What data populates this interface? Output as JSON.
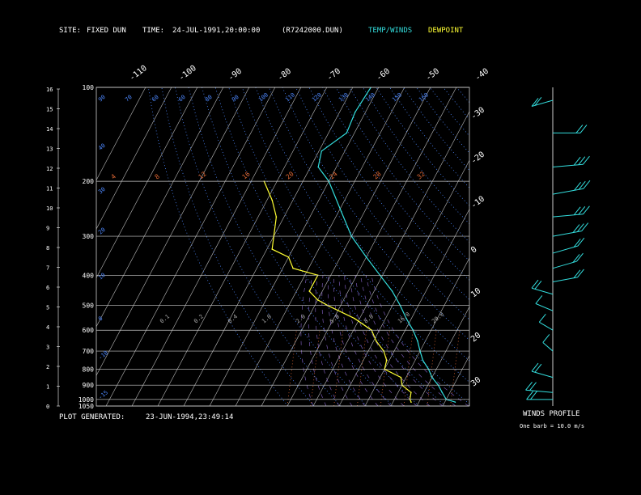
{
  "header": {
    "site_label": "SITE:",
    "site_value": "FIXED DUN",
    "time_label": "TIME:",
    "time_value": "24-JUL-1991,20:00:00",
    "file_value": "(R7242000.DUN)",
    "legend_temp": "TEMP/WINDS",
    "legend_dew": "DEWPOINT"
  },
  "footer": {
    "generated_label": "PLOT GENERATED:",
    "generated_value": "23-JUN-1994,23:49:14"
  },
  "wind_panel": {
    "title": "WINDS PROFILE",
    "note": "One barb = 10.0 m/s"
  },
  "colors": {
    "temp": "#33dddd",
    "dewpoint": "#ffff33",
    "isotherm": "#bbbbbb",
    "isobar": "#cccccc",
    "dry_adiabat": "#4d88ff",
    "moist_adiabat": "#4d88ff",
    "mixing_ratio": "#dd6633",
    "text": "#ffffff"
  },
  "chart_data": {
    "type": "line",
    "chart_kind": "skew-T log-P sounding",
    "pressure_levels_mb": [
      100,
      200,
      300,
      400,
      500,
      600,
      700,
      800,
      900,
      1000,
      1050
    ],
    "pressure_labels": [
      "100",
      "200",
      "300",
      "400",
      "500",
      "600",
      "700",
      "800",
      "900",
      "1000",
      "1050"
    ],
    "height_km_labels": [
      "0",
      "1",
      "2",
      "3",
      "4",
      "5",
      "6",
      "7",
      "8",
      "9",
      "10",
      "11",
      "12",
      "13",
      "14",
      "15",
      "16"
    ],
    "isotherm_labels_top": [
      "-110",
      "-100",
      "-90",
      "-80",
      "-70",
      "-60",
      "-50",
      "-40"
    ],
    "isotherm_labels_right": [
      "-30",
      "-20",
      "-10",
      "0",
      "10",
      "20",
      "30"
    ],
    "dry_adiabat_labels_top": [
      "90",
      "70",
      "60",
      "60",
      "80",
      "90",
      "100",
      "110",
      "120",
      "130",
      "140",
      "150",
      "160"
    ],
    "dry_adiabat_labels_left": [
      "40",
      "30",
      "20",
      "10",
      "0",
      "-10",
      "-15"
    ],
    "mixing_ratio_labels": [
      "4",
      "8",
      "12",
      "16",
      "20",
      "24",
      "28",
      "32"
    ],
    "moist_adiabat_labels": [
      "0.1",
      "0.2",
      "0.4",
      "1.0",
      "2.0",
      "5.0",
      "8.0",
      "16.0",
      "20.0"
    ],
    "ylim_mb": [
      100,
      1050
    ],
    "xlim_temp_c_at_surface": [
      -45,
      40
    ],
    "log_pressure": true,
    "series": [
      {
        "name": "TEMP/WINDS",
        "points": [
          {
            "p": 100,
            "t": -63
          },
          {
            "p": 120,
            "t": -64
          },
          {
            "p": 140,
            "t": -63
          },
          {
            "p": 160,
            "t": -69
          },
          {
            "p": 180,
            "t": -67
          },
          {
            "p": 200,
            "t": -60
          },
          {
            "p": 250,
            "t": -49
          },
          {
            "p": 300,
            "t": -40
          },
          {
            "p": 350,
            "t": -30
          },
          {
            "p": 400,
            "t": -21
          },
          {
            "p": 450,
            "t": -13
          },
          {
            "p": 500,
            "t": -7
          },
          {
            "p": 550,
            "t": -2
          },
          {
            "p": 600,
            "t": 3
          },
          {
            "p": 650,
            "t": 7
          },
          {
            "p": 700,
            "t": 10
          },
          {
            "p": 750,
            "t": 13
          },
          {
            "p": 800,
            "t": 17
          },
          {
            "p": 850,
            "t": 20
          },
          {
            "p": 900,
            "t": 24
          },
          {
            "p": 950,
            "t": 27
          },
          {
            "p": 1000,
            "t": 30
          },
          {
            "p": 1020,
            "t": 34
          }
        ]
      },
      {
        "name": "DEWPOINT",
        "points": [
          {
            "p": 200,
            "t": -85
          },
          {
            "p": 230,
            "t": -78
          },
          {
            "p": 260,
            "t": -73
          },
          {
            "p": 300,
            "t": -70
          },
          {
            "p": 330,
            "t": -68
          },
          {
            "p": 350,
            "t": -60
          },
          {
            "p": 380,
            "t": -56
          },
          {
            "p": 400,
            "t": -45
          },
          {
            "p": 450,
            "t": -45
          },
          {
            "p": 480,
            "t": -40
          },
          {
            "p": 500,
            "t": -35
          },
          {
            "p": 550,
            "t": -22
          },
          {
            "p": 600,
            "t": -13
          },
          {
            "p": 650,
            "t": -9
          },
          {
            "p": 700,
            "t": -4
          },
          {
            "p": 750,
            "t": -1
          },
          {
            "p": 800,
            "t": 0
          },
          {
            "p": 850,
            "t": 8
          },
          {
            "p": 900,
            "t": 10
          },
          {
            "p": 950,
            "t": 15
          },
          {
            "p": 1000,
            "t": 16
          },
          {
            "p": 1020,
            "t": 17
          }
        ]
      }
    ],
    "winds": [
      {
        "p": 110,
        "speed_ms": 15,
        "dir": 120
      },
      {
        "p": 140,
        "speed_ms": 20,
        "dir": 270
      },
      {
        "p": 180,
        "speed_ms": 25,
        "dir": 280
      },
      {
        "p": 220,
        "speed_ms": 28,
        "dir": 290
      },
      {
        "p": 260,
        "speed_ms": 25,
        "dir": 280
      },
      {
        "p": 300,
        "speed_ms": 25,
        "dir": 290
      },
      {
        "p": 340,
        "speed_ms": 22,
        "dir": 300
      },
      {
        "p": 380,
        "speed_ms": 20,
        "dir": 300
      },
      {
        "p": 420,
        "speed_ms": 18,
        "dir": 290
      },
      {
        "p": 460,
        "speed_ms": 15,
        "dir": 60
      },
      {
        "p": 520,
        "speed_ms": 12,
        "dir": 50
      },
      {
        "p": 600,
        "speed_ms": 10,
        "dir": 40
      },
      {
        "p": 700,
        "speed_ms": 8,
        "dir": 30
      },
      {
        "p": 850,
        "speed_ms": 15,
        "dir": 60
      },
      {
        "p": 950,
        "speed_ms": 20,
        "dir": 80
      },
      {
        "p": 1000,
        "speed_ms": 18,
        "dir": 90
      }
    ]
  }
}
